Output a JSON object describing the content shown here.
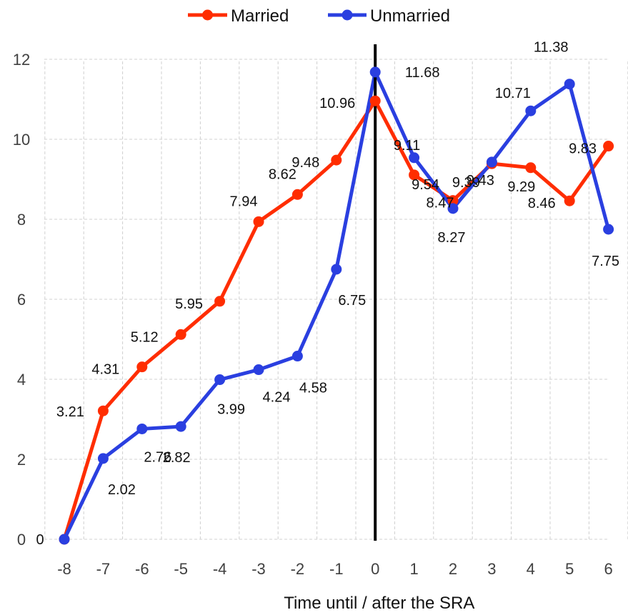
{
  "chart_data": {
    "type": "line",
    "title": "",
    "xlabel": "Time until / after the SRA",
    "ylabel": "",
    "x": [
      -8,
      -7,
      -6,
      -5,
      -4,
      -3,
      -2,
      -1,
      0,
      1,
      2,
      3,
      4,
      5,
      6
    ],
    "x_tick_labels": [
      "-8",
      "-7",
      "-6",
      "-5",
      "-4",
      "-3",
      "-2",
      "-1",
      "0",
      "1",
      "2",
      "3",
      "4",
      "5",
      "6"
    ],
    "y_tick_labels": [
      "0",
      "2",
      "4",
      "6",
      "8",
      "10",
      "12"
    ],
    "ylim": [
      0,
      12
    ],
    "grid": "dashed vertical and horizontal",
    "legend_position": "top",
    "reference_line_x": 0,
    "series": [
      {
        "name": "Married",
        "color": "#ff2d00",
        "values": [
          0,
          3.21,
          4.31,
          5.12,
          5.95,
          7.94,
          8.62,
          9.48,
          10.96,
          9.11,
          8.47,
          9.39,
          9.29,
          8.46,
          9.83
        ],
        "labels": [
          "0",
          "3.21",
          "4.31",
          "5.12",
          "5.95",
          "7.94",
          "8.62",
          "9.48",
          "10.96",
          "9.11",
          "8.47",
          "9.39",
          "9.29",
          "8.46",
          "9.83"
        ]
      },
      {
        "name": "Unmarried",
        "color": "#2a3fe0",
        "values": [
          0,
          2.02,
          2.76,
          2.82,
          3.99,
          4.24,
          4.58,
          6.75,
          11.68,
          9.54,
          8.27,
          9.43,
          10.71,
          11.38,
          7.75
        ],
        "labels": [
          "",
          "2.02",
          "2.76",
          "2.82",
          "3.99",
          "4.24",
          "4.58",
          "6.75",
          "11.68",
          "9.54",
          "8.27",
          "9.43",
          "10.71",
          "11.38",
          "7.75"
        ]
      }
    ]
  }
}
